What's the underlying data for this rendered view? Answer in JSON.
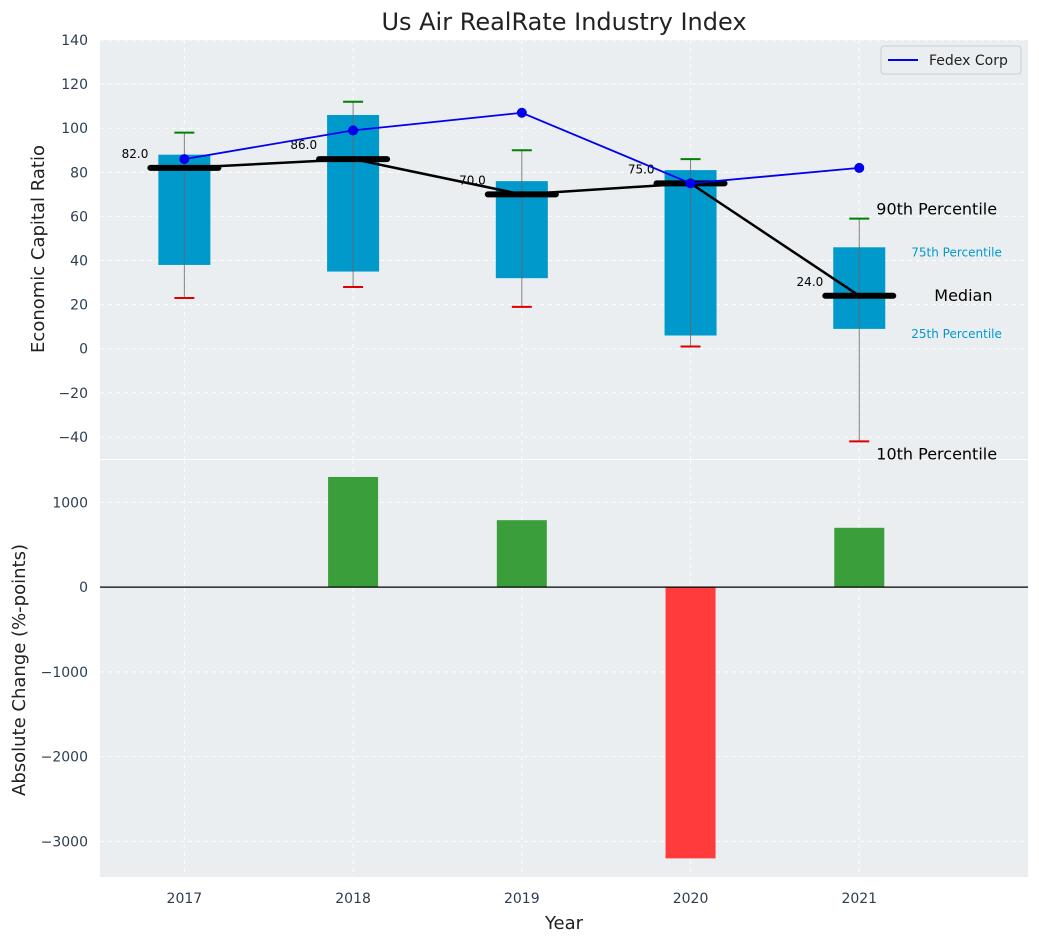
{
  "chart_data": [
    {
      "type": "box-line",
      "title": "Us Air RealRate Industry Index",
      "ylabel": "Economic Capital Ratio",
      "ylim": [
        -50,
        140
      ],
      "yticks": [
        140,
        120,
        100,
        80,
        60,
        40,
        20,
        0,
        -20,
        -40
      ],
      "ytick_labels": [
        "140",
        "120",
        "100",
        "80",
        "60",
        "40",
        "20",
        "0",
        "−20",
        "−40"
      ],
      "categories": [
        "2017",
        "2018",
        "2019",
        "2020",
        "2021"
      ],
      "boxes": [
        {
          "p10": 23,
          "p25": 38,
          "median": 82,
          "p75": 88,
          "p90": 98
        },
        {
          "p10": 28,
          "p25": 35,
          "median": 86,
          "p75": 106,
          "p90": 112
        },
        {
          "p10": 19,
          "p25": 32,
          "median": 70,
          "p75": 76,
          "p90": 90
        },
        {
          "p10": 1,
          "p25": 6,
          "median": 75,
          "p75": 81,
          "p90": 86
        },
        {
          "p10": -42,
          "p25": 9,
          "median": 24,
          "p75": 46,
          "p90": 59
        }
      ],
      "median_labels": [
        "82.0",
        "86.0",
        "70.0",
        "75.0",
        "24.0"
      ],
      "series": [
        {
          "name": "Fedex Corp",
          "values": [
            86,
            99,
            107,
            75,
            82
          ],
          "color": "#0000ee"
        }
      ],
      "annotations": {
        "p90": "90th Percentile",
        "p75": "75th Percentile",
        "median": "Median",
        "p25": "25th Percentile",
        "p10": "10th Percentile"
      },
      "colors": {
        "box": "#0099cc",
        "median": "#000000",
        "whisker_top": "#008000",
        "whisker_bottom": "#dd0000",
        "background": "#eaeef0"
      }
    },
    {
      "type": "bar",
      "ylabel": "Absolute Change (%-points)",
      "xlabel": "Year",
      "ylim": [
        -3420,
        1500
      ],
      "yticks": [
        1000,
        0,
        -1000,
        -2000,
        -3000
      ],
      "ytick_labels": [
        "1000",
        "0",
        "−1000",
        "−2000",
        "−3000"
      ],
      "categories": [
        "2017",
        "2018",
        "2019",
        "2020",
        "2021"
      ],
      "values": [
        0,
        1300,
        790,
        -3200,
        700
      ],
      "colors": {
        "positive": "#3a9e3a",
        "negative": "#ff3b3b"
      }
    }
  ]
}
